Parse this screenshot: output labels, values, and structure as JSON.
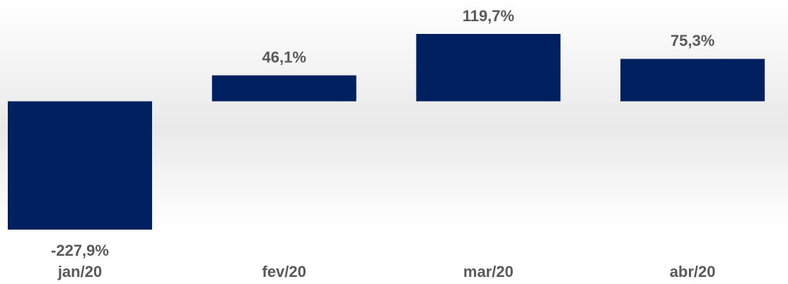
{
  "chart_data": {
    "type": "bar",
    "categories": [
      "jan/20",
      "fev/20",
      "mar/20",
      "abr/20"
    ],
    "values": [
      -227.9,
      46.1,
      119.7,
      75.3
    ],
    "value_labels": [
      "-227,9%",
      "46,1%",
      "119,7%",
      "75,3%"
    ],
    "color": "#002060"
  }
}
